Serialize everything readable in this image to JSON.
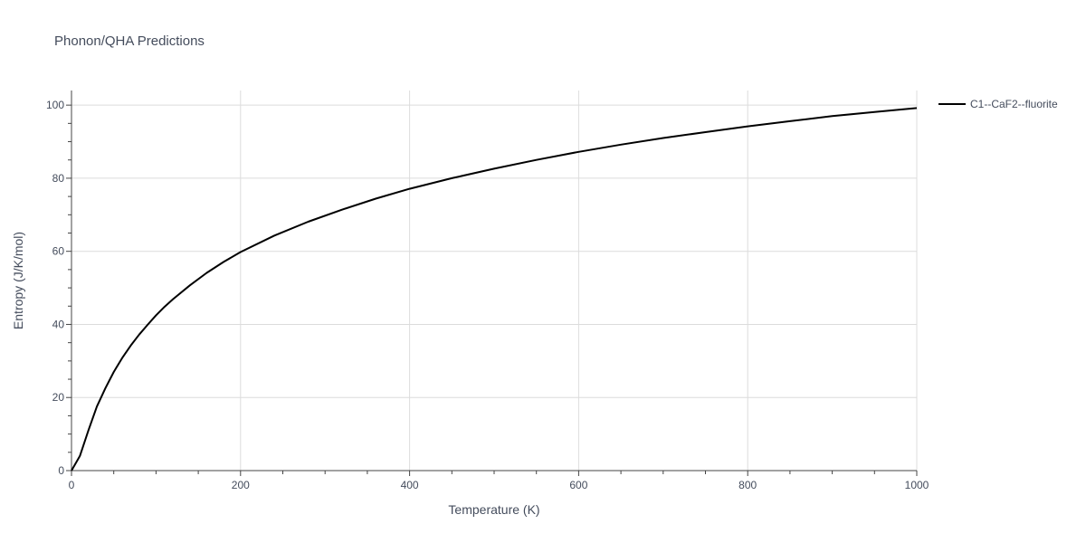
{
  "chart_data": {
    "type": "line",
    "title": "Phonon/QHA Predictions",
    "xlabel": "Temperature (K)",
    "ylabel": "Entropy (J/K/mol)",
    "xlim": [
      0,
      1000
    ],
    "ylim": [
      0,
      104
    ],
    "xticks": [
      0,
      200,
      400,
      600,
      800,
      1000
    ],
    "yticks": [
      0,
      20,
      40,
      60,
      80,
      100
    ],
    "grid": true,
    "legend_position": "top-right-outside",
    "series": [
      {
        "name": "C1--CaF2--fluorite",
        "color": "#000000",
        "x": [
          0,
          10,
          20,
          30,
          40,
          50,
          60,
          70,
          80,
          90,
          100,
          110,
          120,
          140,
          160,
          180,
          200,
          240,
          280,
          320,
          360,
          400,
          450,
          500,
          550,
          600,
          650,
          700,
          750,
          800,
          850,
          900,
          950,
          1000
        ],
        "y": [
          0,
          4,
          11,
          17.5,
          22.5,
          27,
          30.8,
          34.2,
          37.2,
          39.9,
          42.5,
          44.8,
          46.9,
          50.7,
          54.1,
          57.1,
          59.8,
          64.3,
          68.1,
          71.4,
          74.4,
          77.1,
          80,
          82.6,
          85,
          87.2,
          89.2,
          91,
          92.6,
          94.2,
          95.6,
          97,
          98.1,
          99.2
        ]
      }
    ]
  }
}
